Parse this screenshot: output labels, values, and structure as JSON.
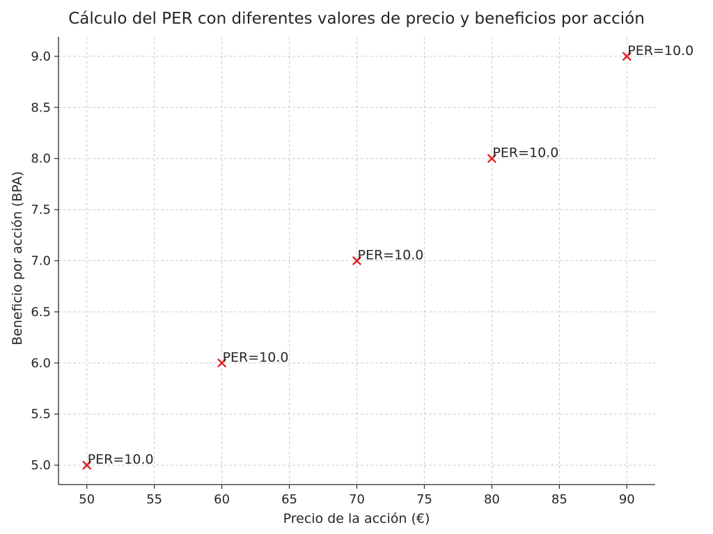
{
  "chart_data": {
    "type": "scatter",
    "title": "Cálculo del PER con diferentes valores de precio y beneficios por acción",
    "xlabel": "Precio de la acción (€)",
    "ylabel": "Beneficio por acción (BPA)",
    "xlim": [
      47.9,
      92.1
    ],
    "ylim": [
      4.81,
      9.19
    ],
    "xticks": [
      50,
      55,
      60,
      65,
      70,
      75,
      80,
      85,
      90
    ],
    "xtick_labels": [
      "50",
      "55",
      "60",
      "65",
      "70",
      "75",
      "80",
      "85",
      "90"
    ],
    "yticks": [
      5.0,
      5.5,
      6.0,
      6.5,
      7.0,
      7.5,
      8.0,
      8.5,
      9.0
    ],
    "ytick_labels": [
      "5.0",
      "5.5",
      "6.0",
      "6.5",
      "7.0",
      "7.5",
      "8.0",
      "8.5",
      "9.0"
    ],
    "grid": true,
    "marker": "x",
    "marker_color": "#e32020",
    "series": [
      {
        "name": "PER",
        "x": [
          50,
          60,
          70,
          80,
          90
        ],
        "y": [
          5.0,
          6.0,
          7.0,
          8.0,
          9.0
        ]
      }
    ],
    "annotations": [
      "PER=10.0",
      "PER=10.0",
      "PER=10.0",
      "PER=10.0",
      "PER=10.0"
    ]
  }
}
